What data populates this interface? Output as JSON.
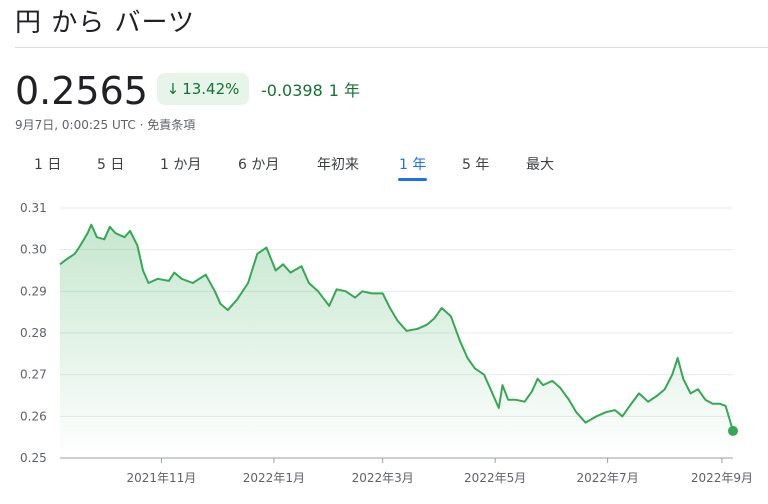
{
  "header": {
    "title": "円 から バーツ"
  },
  "quote": {
    "price": "0.2565",
    "change_percent": "13.42%",
    "change_value": "-0.0398",
    "change_period": "1 年",
    "timestamp": "9月7日, 0:00:25 UTC · 免責条項"
  },
  "tabs": [
    {
      "label": "1 日"
    },
    {
      "label": "5 日"
    },
    {
      "label": "1 か月"
    },
    {
      "label": "6 か月"
    },
    {
      "label": "年初来"
    },
    {
      "label": "1 年",
      "active": true
    },
    {
      "label": "5 年"
    },
    {
      "label": "最大"
    }
  ],
  "colors": {
    "line": "#34a853",
    "badge_bg": "#e6f4ea",
    "positive_text": "#137333",
    "accent": "#1a73e8"
  },
  "chart_data": {
    "type": "area",
    "ylim": [
      0.25,
      0.31
    ],
    "yticks": [
      "0.31",
      "0.30",
      "0.29",
      "0.28",
      "0.27",
      "0.26",
      "0.25"
    ],
    "xticks": [
      "2021年11月",
      "2022年1月",
      "2022年3月",
      "2022年5月",
      "2022年7月",
      "2022年9月"
    ],
    "x_range": [
      "2021-09-07",
      "2022-09-07"
    ],
    "series": [
      {
        "points": [
          [
            "2021-09-07",
            0.2965
          ],
          [
            "2021-09-10",
            0.2975
          ],
          [
            "2021-09-15",
            0.299
          ],
          [
            "2021-09-18",
            0.301
          ],
          [
            "2021-09-22",
            0.304
          ],
          [
            "2021-09-24",
            0.306
          ],
          [
            "2021-09-27",
            0.303
          ],
          [
            "2021-10-01",
            0.3025
          ],
          [
            "2021-10-04",
            0.3055
          ],
          [
            "2021-10-07",
            0.304
          ],
          [
            "2021-10-12",
            0.303
          ],
          [
            "2021-10-15",
            0.3045
          ],
          [
            "2021-10-19",
            0.301
          ],
          [
            "2021-10-22",
            0.295
          ],
          [
            "2021-10-25",
            0.292
          ],
          [
            "2021-10-30",
            0.293
          ],
          [
            "2021-11-05",
            0.2925
          ],
          [
            "2021-11-08",
            0.2945
          ],
          [
            "2021-11-12",
            0.293
          ],
          [
            "2021-11-18",
            0.292
          ],
          [
            "2021-11-25",
            0.294
          ],
          [
            "2021-11-30",
            0.29
          ],
          [
            "2021-12-03",
            0.287
          ],
          [
            "2021-12-07",
            0.2855
          ],
          [
            "2021-12-12",
            0.288
          ],
          [
            "2021-12-18",
            0.292
          ],
          [
            "2021-12-23",
            0.299
          ],
          [
            "2021-12-28",
            0.3005
          ],
          [
            "2022-01-02",
            0.295
          ],
          [
            "2022-01-06",
            0.2965
          ],
          [
            "2022-01-10",
            0.2945
          ],
          [
            "2022-01-16",
            0.296
          ],
          [
            "2022-01-20",
            0.292
          ],
          [
            "2022-01-25",
            0.29
          ],
          [
            "2022-01-31",
            0.2865
          ],
          [
            "2022-02-04",
            0.2905
          ],
          [
            "2022-02-09",
            0.29
          ],
          [
            "2022-02-14",
            0.2885
          ],
          [
            "2022-02-18",
            0.29
          ],
          [
            "2022-02-23",
            0.2895
          ],
          [
            "2022-03-01",
            0.2895
          ],
          [
            "2022-03-05",
            0.286
          ],
          [
            "2022-03-09",
            0.283
          ],
          [
            "2022-03-14",
            0.2805
          ],
          [
            "2022-03-20",
            0.281
          ],
          [
            "2022-03-25",
            0.282
          ],
          [
            "2022-03-29",
            0.2835
          ],
          [
            "2022-04-02",
            0.286
          ],
          [
            "2022-04-07",
            0.284
          ],
          [
            "2022-04-12",
            0.278
          ],
          [
            "2022-04-16",
            0.274
          ],
          [
            "2022-04-20",
            0.2715
          ],
          [
            "2022-04-25",
            0.27
          ],
          [
            "2022-04-29",
            0.266
          ],
          [
            "2022-05-03",
            0.262
          ],
          [
            "2022-05-05",
            0.2675
          ],
          [
            "2022-05-08",
            0.264
          ],
          [
            "2022-05-12",
            0.264
          ],
          [
            "2022-05-17",
            0.2635
          ],
          [
            "2022-05-21",
            0.266
          ],
          [
            "2022-05-24",
            0.269
          ],
          [
            "2022-05-27",
            0.2675
          ],
          [
            "2022-06-01",
            0.2685
          ],
          [
            "2022-06-05",
            0.267
          ],
          [
            "2022-06-10",
            0.264
          ],
          [
            "2022-06-14",
            0.261
          ],
          [
            "2022-06-19",
            0.2585
          ],
          [
            "2022-06-25",
            0.26
          ],
          [
            "2022-06-30",
            0.261
          ],
          [
            "2022-07-05",
            0.2615
          ],
          [
            "2022-07-09",
            0.26
          ],
          [
            "2022-07-13",
            0.2625
          ],
          [
            "2022-07-18",
            0.2655
          ],
          [
            "2022-07-23",
            0.2635
          ],
          [
            "2022-07-28",
            0.265
          ],
          [
            "2022-08-01",
            0.2665
          ],
          [
            "2022-08-05",
            0.27
          ],
          [
            "2022-08-08",
            0.274
          ],
          [
            "2022-08-11",
            0.269
          ],
          [
            "2022-08-15",
            0.2655
          ],
          [
            "2022-08-19",
            0.2665
          ],
          [
            "2022-08-23",
            0.264
          ],
          [
            "2022-08-27",
            0.263
          ],
          [
            "2022-08-31",
            0.263
          ],
          [
            "2022-09-03",
            0.2625
          ],
          [
            "2022-09-07",
            0.2565
          ]
        ]
      }
    ]
  }
}
